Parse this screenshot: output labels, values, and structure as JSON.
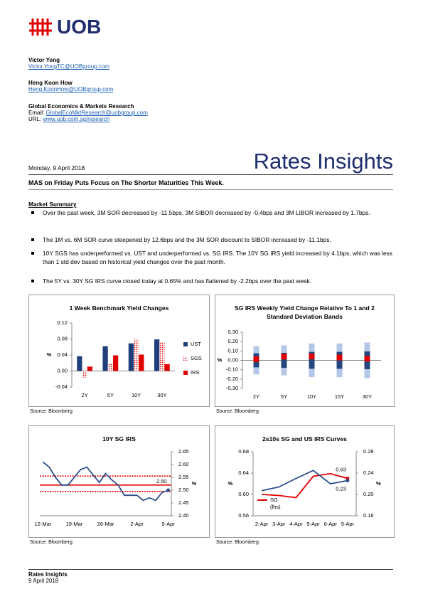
{
  "header": {
    "logo": "UOB"
  },
  "authors": [
    {
      "name": "Victor Yong",
      "email": "Victor.YongTC@UOBgroup.com"
    },
    {
      "name": "Heng Koon How",
      "email": "Heng.KoonHow@UOBgroup.com"
    }
  ],
  "team": {
    "name": "Global Economics & Markets Research",
    "email_label": "Email:",
    "email": "GlobalEcoMktResearch@uobgroup.com",
    "url_label": "URL:",
    "url": "www.uob.com.sg/research"
  },
  "date": "Monday, 9 April 2018",
  "report_title": "Rates Insights",
  "headline": "MAS on Friday Puts Focus on The Shorter Maturities This Week.",
  "summary": {
    "heading": "Market Summary",
    "bullets": [
      "Over the past week, 3M SOR decreased by -11.5bps, 3M SIBOR decreased by -0.4bps and 3M LIBOR increased by 1.7bps.",
      "The 1M vs. 6M SOR curve steepened by 12.6bps and the 3M SOR discount to SIBOR increased by -11.1bps.",
      "10Y SGS has underperformed vs. UST and underperformed vs. SG IRS. The 10Y SG IRS yield increased by 4.1bps, which was less than 1 std dev based on historical yield changes over the past month.",
      "The 5Y vs. 30Y SG IRS curve closed today at 0.65% and has flattened by -2.2bps over the past week."
    ]
  },
  "chart_data": [
    {
      "type": "bar",
      "title": "1 Week Benchmark Yield Changes",
      "ylabel": "%",
      "categories": [
        "2Y",
        "5Y",
        "10Y",
        "30Y"
      ],
      "series": [
        {
          "name": "UST",
          "color": "#1f3f7a",
          "values": [
            0.037,
            0.062,
            0.069,
            0.079
          ]
        },
        {
          "name": "SGS",
          "color": "#e00000",
          "pattern": "dots",
          "values": [
            -0.016,
            0.02,
            0.08,
            0.072
          ]
        },
        {
          "name": "IRS",
          "color": "#e00000",
          "values": [
            0.011,
            0.039,
            0.041,
            0.017
          ]
        }
      ],
      "ylim": [
        -0.04,
        0.12
      ],
      "yticks": [
        -0.04,
        {
          "value": 0,
          "label": "0.00"
        },
        0.04,
        0.08,
        0.12
      ],
      "legend": "right",
      "source": "Source: Bloomberg"
    },
    {
      "type": "band",
      "title": "SG IRS Weekly Yield Change Relative To 1 and 2 Standard Deviation Bands",
      "ylabel": "%",
      "categories": [
        "2Y",
        "5Y",
        "10Y",
        "15Y",
        "30Y"
      ],
      "series": [
        {
          "style": "band",
          "color": "#b4c7e7",
          "values": [
            0.15,
            0.16,
            0.18,
            0.18,
            0.19
          ]
        },
        {
          "style": "band",
          "color": "#24477f",
          "values": [
            0.075,
            0.08,
            0.09,
            0.09,
            0.095
          ]
        },
        {
          "style": "marker",
          "color": "#e00000",
          "values": [
            0.011,
            0.039,
            0.041,
            0.03,
            0.017
          ]
        }
      ],
      "ylim": [
        -0.3,
        0.3
      ],
      "yticks": [
        {
          "value": -0.3,
          "label": "-0.30"
        },
        {
          "value": -0.2,
          "label": "-0.20"
        },
        {
          "value": -0.1,
          "label": "-0.10"
        },
        {
          "value": 0,
          "label": "0.00"
        },
        {
          "value": 0.1,
          "label": "0.10"
        },
        {
          "value": 0.2,
          "label": "0.20"
        },
        {
          "value": 0.3,
          "label": "0.30"
        }
      ],
      "source": "Source: Bloomberg"
    },
    {
      "type": "line",
      "title": "10Y SG IRS",
      "ylabel": "%",
      "y_axis_side": "right",
      "categories": [
        "12-Mar",
        null,
        null,
        null,
        null,
        "19-Mar",
        null,
        null,
        null,
        null,
        "26-Mar",
        null,
        null,
        null,
        null,
        "2-Apr",
        null,
        null,
        null,
        null,
        "9-Apr"
      ],
      "series": [
        {
          "color": "#2e4d8a",
          "values": [
            2.61,
            2.59,
            2.55,
            2.52,
            2.52,
            2.55,
            2.58,
            2.59,
            2.56,
            2.53,
            2.565,
            2.54,
            2.52,
            2.48,
            2.48,
            2.48,
            2.46,
            2.47,
            2.46,
            2.49,
            2.5
          ],
          "value_labels": [
            null,
            null,
            null,
            null,
            null,
            null,
            null,
            null,
            null,
            null,
            null,
            null,
            null,
            null,
            null,
            null,
            null,
            null,
            null,
            null,
            "2.50"
          ]
        }
      ],
      "hlines": {
        "color": "#e00000",
        "lines": [
          {
            "value": 2.52,
            "style": "solid"
          },
          {
            "value": 2.555,
            "style": "dotted"
          },
          {
            "value": 2.495,
            "style": "dotted"
          }
        ]
      },
      "ylim": [
        2.4,
        2.65
      ],
      "yticks": [
        {
          "value": 2.4,
          "label": "2.40"
        },
        2.45,
        {
          "value": 2.5,
          "label": "2.50"
        },
        2.55,
        {
          "value": 2.6,
          "label": "2.60"
        },
        2.65
      ],
      "source": "Source: Bloomberg"
    },
    {
      "type": "line",
      "title": "2s10s SG and US IRS Curves",
      "ylabel": "%",
      "y2label": "%",
      "categories": [
        "2-Apr",
        "3-Apr",
        "4-Apr",
        "5-Apr",
        "6-Apr",
        "9-Apr"
      ],
      "series": [
        {
          "name": "SG",
          "name_note": "(lhs)",
          "color": "#e00000",
          "values": [
            0.6,
            0.598,
            0.594,
            0.634,
            0.639,
            0.63
          ],
          "value_labels": [
            null,
            null,
            null,
            null,
            null,
            "0.63"
          ]
        },
        {
          "color": "#2e4d8a",
          "axis": "y2",
          "values": [
            0.207,
            0.214,
            0.23,
            0.245,
            0.22,
            0.226
          ],
          "value_labels": [
            null,
            null,
            null,
            null,
            null,
            "0.23"
          ]
        }
      ],
      "ylim": [
        0.56,
        0.68
      ],
      "yticks": [
        0.56,
        {
          "value": 0.6,
          "label": "0.60"
        },
        0.64,
        0.68
      ],
      "y2lim": [
        0.16,
        0.28
      ],
      "y2ticks": [
        0.16,
        {
          "value": 0.2,
          "label": "0.20"
        },
        0.24,
        0.28
      ],
      "legend": "lower left",
      "source": "Source: Bloomberg"
    }
  ],
  "footer": {
    "title": "Rates Insights",
    "date": "9 April 2018"
  }
}
